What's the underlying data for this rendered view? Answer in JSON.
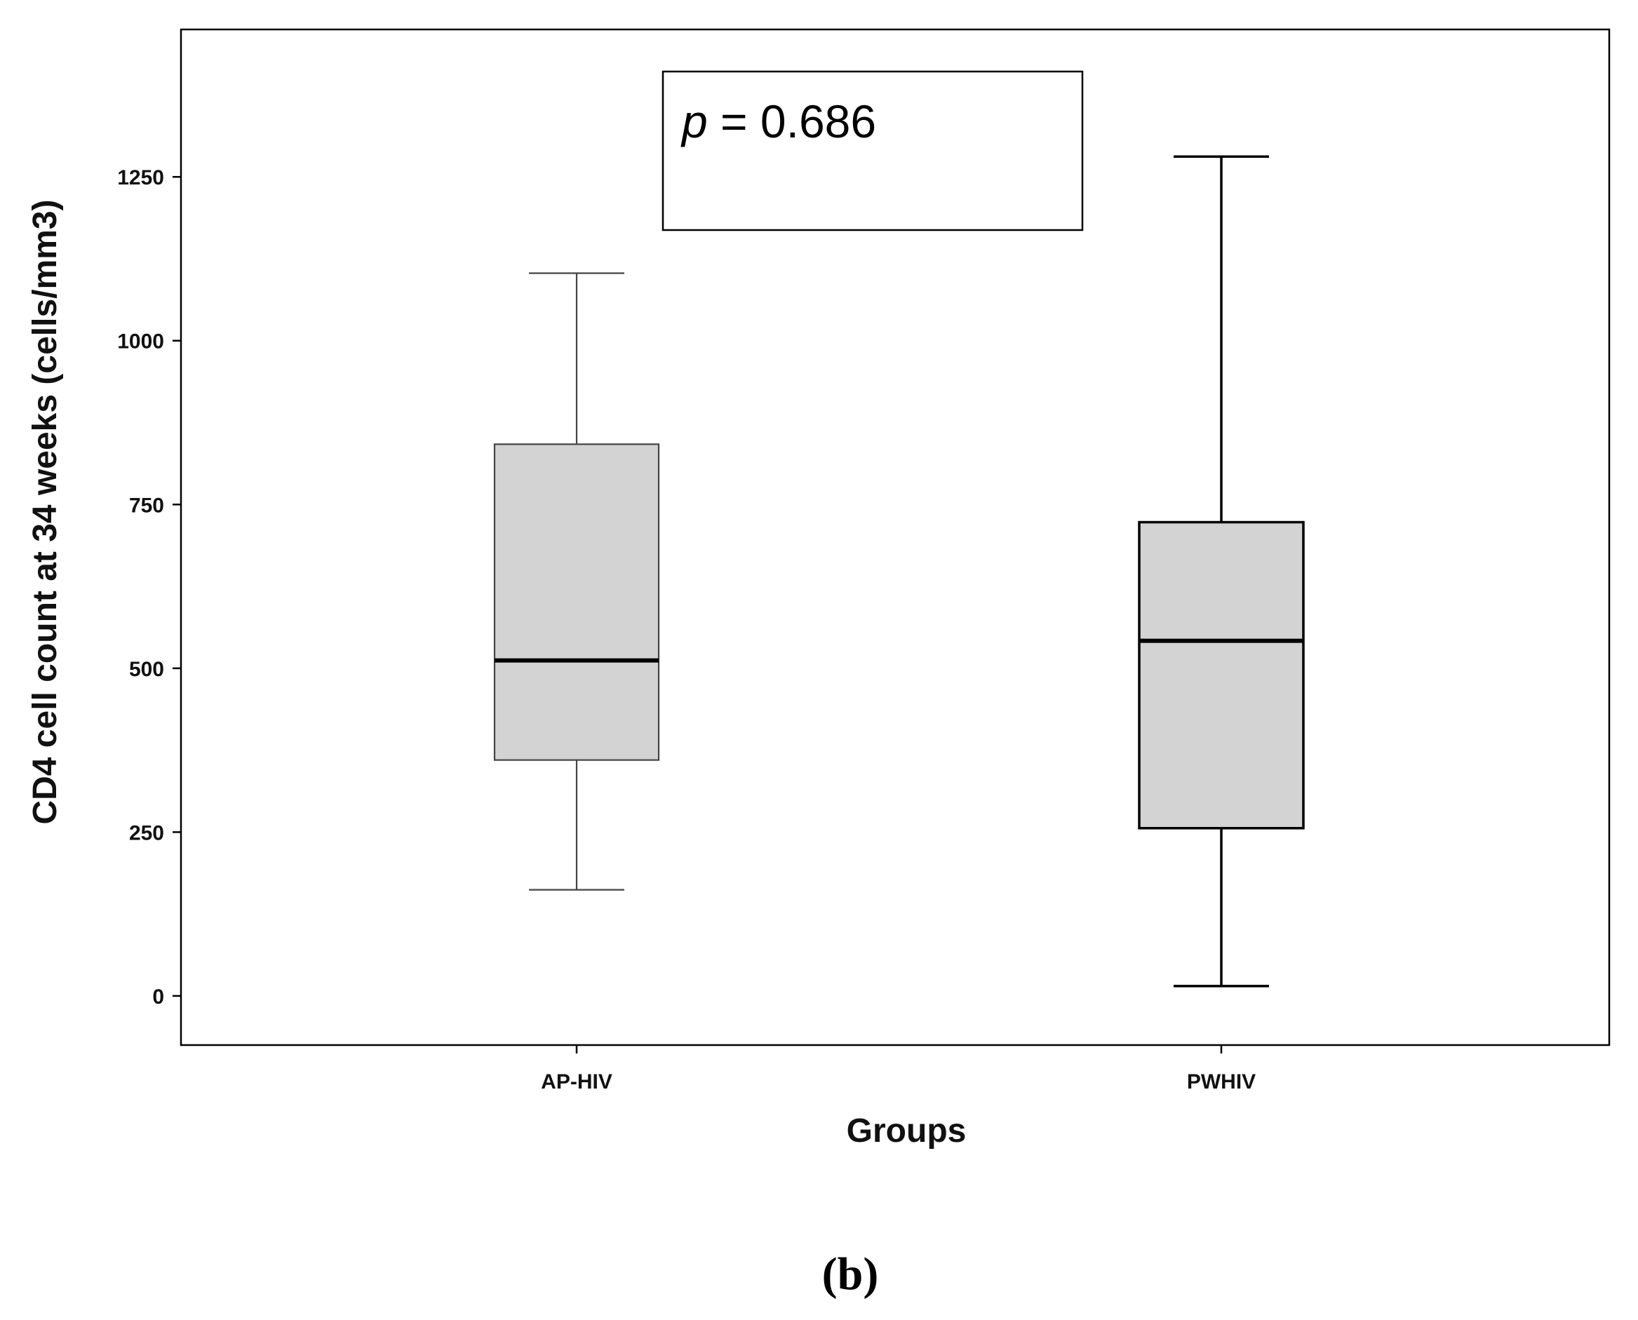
{
  "chart_data": {
    "type": "box",
    "categories": [
      "AP-HIV",
      "PWHIV"
    ],
    "boxes": [
      {
        "category": "AP-HIV",
        "whisker_low": 162,
        "q1": 360,
        "median": 512,
        "q3": 842,
        "whisker_high": 1103
      },
      {
        "category": "PWHIV",
        "whisker_low": 15,
        "q1": 256,
        "median": 542,
        "q3": 723,
        "whisker_high": 1281
      }
    ],
    "yticks": [
      0,
      250,
      500,
      750,
      1000,
      1250
    ],
    "ylim": [
      -75,
      1475
    ],
    "xlabel": "Groups",
    "ylabel": "CD4 cell count at 34 weeks (cells/mm3)",
    "annotation": {
      "symbol": "p",
      "text": " = 0.686"
    },
    "caption": "(b)",
    "grid": false,
    "box_fill": "#d3d3d3",
    "line_color": "#000000"
  }
}
